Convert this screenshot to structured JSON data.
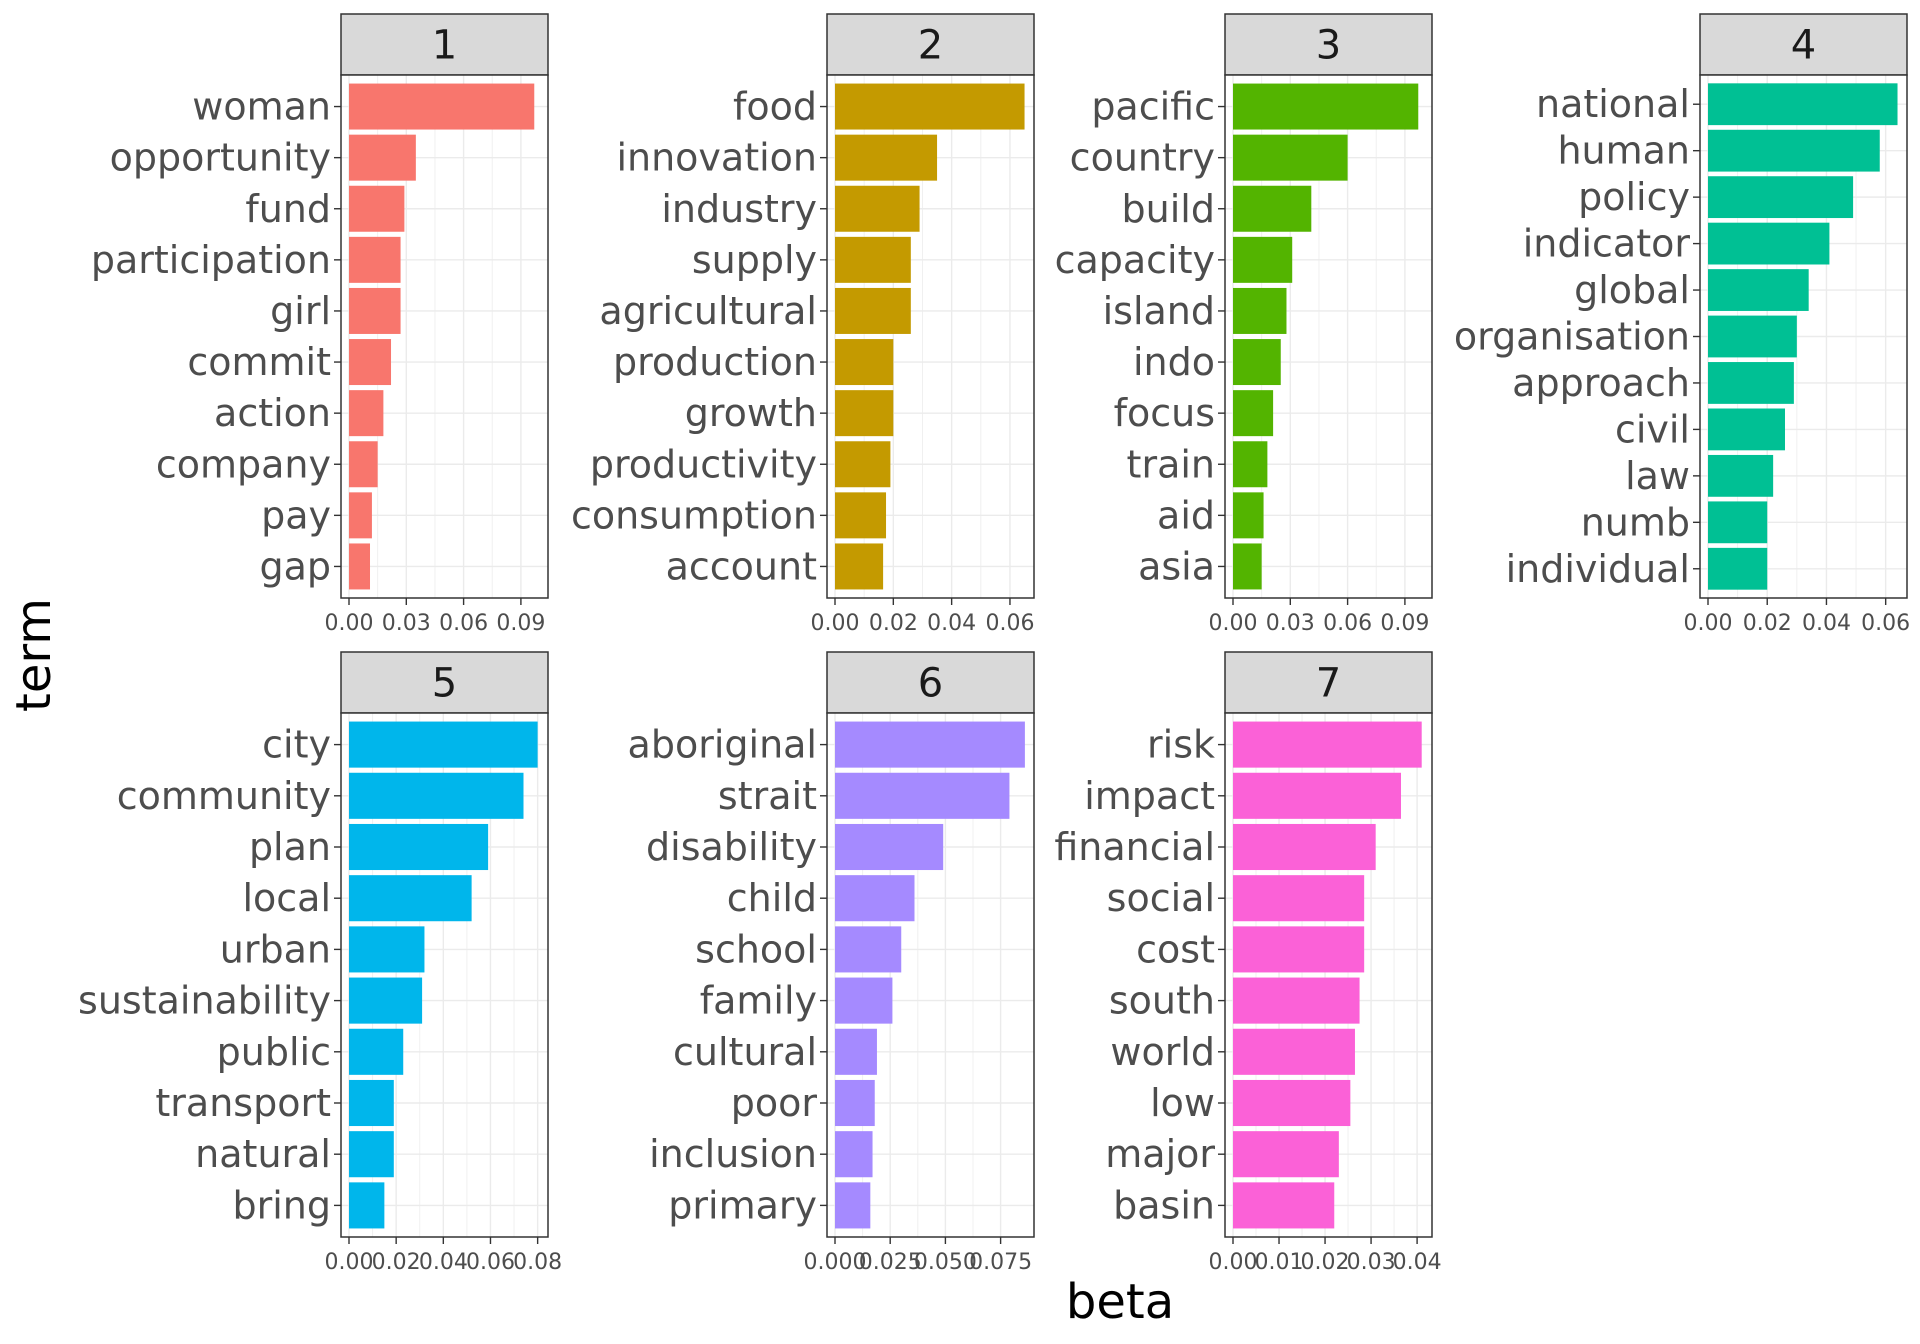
{
  "chart_data": {
    "type": "bar",
    "orientation": "horizontal",
    "xlabel": "beta",
    "ylabel": "term",
    "grid": true,
    "legend": "none",
    "facets": [
      {
        "label": "1",
        "color": "#F8766D",
        "xlim": [
          0,
          0.1
        ],
        "ticks": [
          0.0,
          0.03,
          0.06,
          0.09
        ],
        "tick_labels": [
          "0.00",
          "0.03",
          "0.06",
          "0.09"
        ],
        "terms": [
          "woman",
          "opportunity",
          "fund",
          "participation",
          "girl",
          "commit",
          "action",
          "company",
          "pay",
          "gap"
        ],
        "values": [
          0.097,
          0.035,
          0.029,
          0.027,
          0.027,
          0.022,
          0.018,
          0.015,
          0.012,
          0.011
        ]
      },
      {
        "label": "2",
        "color": "#C49A00",
        "xlim": [
          0,
          0.0655
        ],
        "ticks": [
          0.0,
          0.02,
          0.04,
          0.06
        ],
        "tick_labels": [
          "0.00",
          "0.02",
          "0.04",
          "0.06"
        ],
        "terms": [
          "food",
          "innovation",
          "industry",
          "supply",
          "agricultural",
          "production",
          "growth",
          "productivity",
          "consumption",
          "account"
        ],
        "values": [
          0.065,
          0.035,
          0.029,
          0.026,
          0.026,
          0.02,
          0.02,
          0.019,
          0.0175,
          0.0165
        ]
      },
      {
        "label": "3",
        "color": "#53B400",
        "xlim": [
          0,
          0.1
        ],
        "ticks": [
          0.0,
          0.03,
          0.06,
          0.09
        ],
        "tick_labels": [
          "0.00",
          "0.03",
          "0.06",
          "0.09"
        ],
        "terms": [
          "pacific",
          "country",
          "build",
          "capacity",
          "island",
          "indo",
          "focus",
          "train",
          "aid",
          "asia"
        ],
        "values": [
          0.097,
          0.06,
          0.041,
          0.031,
          0.028,
          0.025,
          0.021,
          0.018,
          0.016,
          0.015
        ]
      },
      {
        "label": "4",
        "color": "#00C094",
        "xlim": [
          0,
          0.0645
        ],
        "ticks": [
          0.0,
          0.02,
          0.04,
          0.06
        ],
        "tick_labels": [
          "0.00",
          "0.02",
          "0.04",
          "0.06"
        ],
        "terms": [
          "national",
          "human",
          "policy",
          "indicator",
          "global",
          "organisation",
          "approach",
          "civil",
          "law",
          "numb",
          "individual"
        ],
        "values": [
          0.064,
          0.058,
          0.049,
          0.041,
          0.034,
          0.03,
          0.029,
          0.026,
          0.022,
          0.02,
          0.02
        ]
      },
      {
        "label": "5",
        "color": "#00B6EB",
        "xlim": [
          0,
          0.081
        ],
        "ticks": [
          0.0,
          0.02,
          0.04,
          0.06,
          0.08
        ],
        "tick_labels": [
          "0.00",
          "0.02",
          "0.04",
          "0.06",
          "0.08"
        ],
        "terms": [
          "city",
          "community",
          "plan",
          "local",
          "urban",
          "sustainability",
          "public",
          "transport",
          "natural",
          "bring"
        ],
        "values": [
          0.08,
          0.074,
          0.059,
          0.052,
          0.032,
          0.031,
          0.023,
          0.019,
          0.019,
          0.015
        ]
      },
      {
        "label": "6",
        "color": "#A58AFF",
        "xlim": [
          0,
          0.0865
        ],
        "ticks": [
          0.0,
          0.025,
          0.05,
          0.075
        ],
        "tick_labels": [
          "0.000",
          "0.025",
          "0.050",
          "0.075"
        ],
        "terms": [
          "aboriginal",
          "strait",
          "disability",
          "child",
          "school",
          "family",
          "cultural",
          "poor",
          "inclusion",
          "primary"
        ],
        "values": [
          0.086,
          0.079,
          0.049,
          0.036,
          0.03,
          0.026,
          0.019,
          0.018,
          0.017,
          0.016
        ]
      },
      {
        "label": "7",
        "color": "#FB61D7",
        "xlim": [
          0,
          0.0415
        ],
        "ticks": [
          0.0,
          0.01,
          0.02,
          0.03,
          0.04
        ],
        "tick_labels": [
          "0.00",
          "0.01",
          "0.02",
          "0.03",
          "0.04"
        ],
        "terms": [
          "risk",
          "impact",
          "financial",
          "social",
          "cost",
          "south",
          "world",
          "low",
          "major",
          "basin"
        ],
        "values": [
          0.041,
          0.0365,
          0.031,
          0.0285,
          0.0285,
          0.0275,
          0.0265,
          0.0255,
          0.023,
          0.022
        ]
      }
    ]
  }
}
